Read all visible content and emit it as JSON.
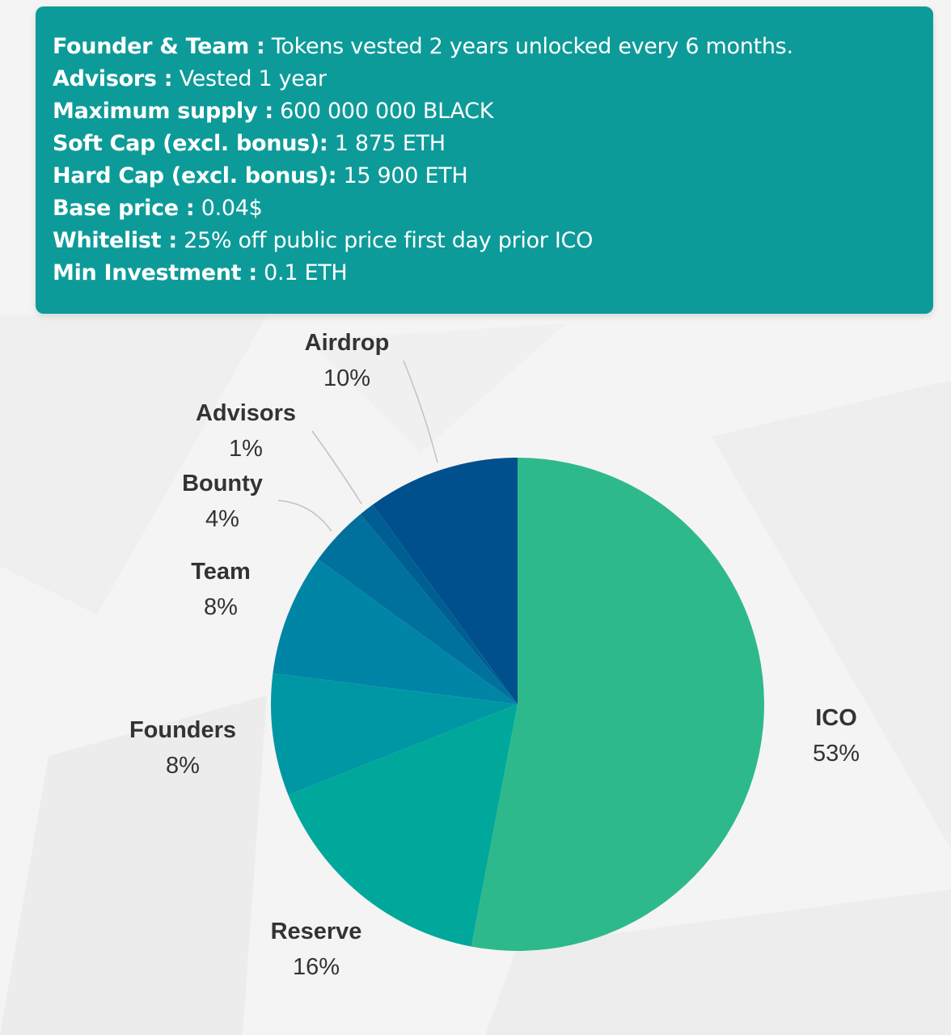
{
  "info": {
    "lines": [
      {
        "key": "Founder & Team :",
        "value": " Tokens vested 2 years unlocked every 6 months."
      },
      {
        "key": "Advisors :",
        "value": " Vested 1 year"
      },
      {
        "key": "Maximum supply :",
        "value": " 600 000 000 BLACK"
      },
      {
        "key": "Soft Cap (excl. bonus):",
        "value": " 1 875 ETH"
      },
      {
        "key": "Hard Cap (excl. bonus):",
        "value": " 15 900 ETH"
      },
      {
        "key": "Base price :",
        "value": " 0.04$"
      },
      {
        "key": "Whitelist :",
        "value": " 25% off public price first day prior ICO"
      },
      {
        "key": "Min Investment :",
        "value": " 0.1 ETH"
      }
    ],
    "box_color": "#0d9b99"
  },
  "chart_data": {
    "type": "pie",
    "start": "12 o'clock",
    "direction": "clockwise",
    "slices": [
      {
        "label": "ICO",
        "pct_label": "53%",
        "value": 53,
        "color": "#2eb98c"
      },
      {
        "label": "Reserve",
        "pct_label": "16%",
        "value": 16,
        "color": "#00a89b"
      },
      {
        "label": "Founders",
        "pct_label": "8%",
        "value": 8,
        "color": "#0097a4"
      },
      {
        "label": "Team",
        "pct_label": "8%",
        "value": 8,
        "color": "#0085a6"
      },
      {
        "label": "Bounty",
        "pct_label": "4%",
        "value": 4,
        "color": "#00719d"
      },
      {
        "label": "Advisors",
        "pct_label": "1%",
        "value": 1,
        "color": "#005f92"
      },
      {
        "label": "Airdrop",
        "pct_label": "10%",
        "value": 10,
        "color": "#00508e"
      }
    ]
  }
}
